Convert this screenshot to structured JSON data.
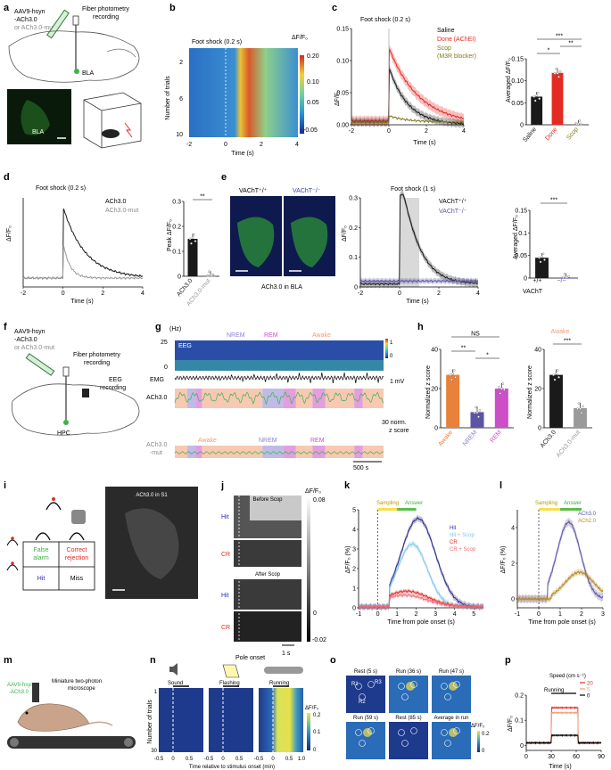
{
  "panels": {
    "a": {
      "letter": "a",
      "virus_l1": "AAV9-hsyn",
      "virus_l2": "-ACh3.0",
      "virus_l3": "or ACh3.0-mut",
      "fiber": "Fiber photometry",
      "fiber2": "recording",
      "region": "BLA",
      "image_label": "BLA"
    },
    "b": {
      "letter": "b",
      "title": "Foot shock (0.2 s)",
      "ylabel": "Number of trials",
      "xlabel": "Time (s)",
      "cbar_label": "ΔF/F₀",
      "cbar_ticks": [
        "0.20",
        "0.10",
        "0.05",
        "-0.05"
      ],
      "xticks": [
        "-2",
        "0",
        "2",
        "4"
      ],
      "yticks": [
        "2",
        "6",
        "10"
      ]
    },
    "c": {
      "letter": "c",
      "title": "Foot shock (0.2 s)",
      "ylabel": "ΔF/F₀",
      "xlabel": "Time (s)",
      "legend": [
        "Saline",
        "Done (AChEI)",
        "Scop",
        "(M3R blocker)"
      ],
      "yticks": [
        "0.00",
        "0.05",
        "0.10",
        "0.15"
      ],
      "xticks": [
        "-2",
        "0",
        "2",
        "4"
      ],
      "bar_ylabel": "Averaged ΔF/F₀",
      "bar_cats": [
        "Saline",
        "Done",
        "Scop"
      ],
      "bar_yticks": [
        "0",
        "0.05",
        "0.10",
        "0.15"
      ],
      "sig": [
        "***",
        "*",
        "**"
      ]
    },
    "d": {
      "letter": "d",
      "title": "Foot shock (0.2 s)",
      "ylabel": "ΔF/F₀",
      "xlabel": "Time (s)",
      "legend": [
        "ACh3.0",
        "ACh3.0-mut"
      ],
      "xticks": [
        "-2",
        "0",
        "2",
        "4"
      ],
      "bar_ylabel": "Peak ΔF/F₀",
      "bar_cats": [
        "ACh3.0",
        "ACh3.0-mut"
      ],
      "bar_yticks": [
        "0",
        "0.1",
        "0.2",
        "0.3"
      ],
      "sig": "**"
    },
    "e": {
      "letter": "e",
      "img1": "VAChT⁺/⁺",
      "img2": "VAChT⁻/⁻",
      "img_caption": "ACh3.0 in BLA",
      "title": "Foot shock (1 s)",
      "legend": [
        "VAChT⁺/⁺",
        "VAChT⁻/⁻"
      ],
      "ylabel": "ΔF/F₀",
      "xlabel": "Time (s)",
      "yticks": [
        "0",
        "0.1",
        "0.2",
        "0.3"
      ],
      "xticks": [
        "-2",
        "0",
        "2",
        "4"
      ],
      "bar_ylabel": "Averaged ΔF/F₀",
      "bar_cats": [
        "+/+",
        "−/−"
      ],
      "bar_prefix": "VAChT",
      "bar_yticks": [
        "0",
        "0.05",
        "0.1",
        "0.15"
      ],
      "sig": "***"
    },
    "f": {
      "letter": "f",
      "virus_l1": "AAV9-hsyn",
      "virus_l2": "-ACh3.0",
      "virus_l3": "or ACh3.0-mut",
      "fiber": "Fiber photometry",
      "fiber2": "recording",
      "eeg": "EEG",
      "eeg2": "recording",
      "region": "HPC"
    },
    "g": {
      "letter": "g",
      "hz": "(Hz)",
      "hz_top": "25",
      "hz_bottom": "0",
      "states": [
        "NREM",
        "REM",
        "Awake"
      ],
      "eeg": "EEG",
      "emg": "EMG",
      "ach": "ACh3.0",
      "mut": "ACh3.0",
      "mut2": "-mut",
      "states2": [
        "Awake",
        "NREM",
        "REM"
      ],
      "scale_mv": "1 mV",
      "scale_z": "30 norm.",
      "scale_z2": "z score",
      "scale_t": "500 s",
      "cbar": [
        "1",
        "0"
      ]
    },
    "h": {
      "letter": "h",
      "ylabel": "Normalized z score",
      "sig_ns": "NS",
      "sig": [
        "**",
        "*"
      ],
      "cats": [
        "Awake",
        "NREM",
        "REM"
      ],
      "yticks": [
        "0",
        "20",
        "40"
      ],
      "right_title": "Awake",
      "right_sig": "***",
      "right_cats": [
        "ACh3.0",
        "ACh3.0-mut"
      ]
    },
    "i": {
      "letter": "i",
      "fa": "False",
      "fa2": "alarm",
      "cr": "Correct",
      "cr2": "rejection",
      "hit": "Hit",
      "miss": "Miss",
      "img_title": "ACh3.0 in S1"
    },
    "j": {
      "letter": "j",
      "before": "Before Scop",
      "after": "After Scop",
      "hit": "Hit",
      "cr": "CR",
      "pole": "Pole onset",
      "scale": "1 s",
      "cbar_label": "ΔF/F₀",
      "cbar_ticks": [
        "0.08",
        "0",
        "-0.02"
      ]
    },
    "k": {
      "letter": "k",
      "sampling": "Sampling",
      "answer": "Answer",
      "legend": [
        "Hit",
        "Hit + Scop",
        "CR",
        "CR + Scop"
      ],
      "ylabel": "ΔF/F₀ (%)",
      "xlabel": "Time from pole onset (s)",
      "yticks": [
        "0",
        "1",
        "2",
        "3",
        "4",
        "5"
      ],
      "xticks": [
        "-1",
        "0",
        "1",
        "2",
        "3",
        "4",
        "5"
      ]
    },
    "l": {
      "letter": "l",
      "sampling": "Sampling",
      "answer": "Answer",
      "legend": [
        "ACh3.0",
        "ACh2.0"
      ],
      "ylabel": "ΔF/F₀ (%)",
      "xlabel": "Time from pole onset (s)",
      "yticks": [
        "0",
        "2",
        "4"
      ],
      "xticks": [
        "-1",
        "0",
        "1",
        "2",
        "3"
      ]
    },
    "m": {
      "letter": "m",
      "virus": "AAV9-hsyn",
      "virus2": "-ACh3.0",
      "scope": "Miniature two-photon",
      "scope2": "microscope"
    },
    "n": {
      "letter": "n",
      "sound": "Sound",
      "flashing": "Flashing",
      "running": "Running",
      "ylabel": "Number of trials",
      "xlabel": "Time relative to stimulus onset (min)",
      "yticks": [
        "1",
        "30"
      ],
      "xticks": [
        "-0.5",
        "0",
        "0.5",
        "1.0"
      ],
      "cbar_label": "ΔF/F₀",
      "cbar_ticks": [
        "0.2",
        "0.1",
        "0"
      ]
    },
    "o": {
      "letter": "o",
      "titles": [
        "Rest (5 s)",
        "Run (36 s)",
        "Run (47 s)",
        "Run (59 s)",
        "Rest (85 s)",
        "Average in run"
      ],
      "rois": [
        "R1",
        "R3",
        "R2"
      ],
      "cbar_label": "ΔF/F₀",
      "cbar_ticks": [
        "0.2",
        "0"
      ]
    },
    "p": {
      "letter": "p",
      "legend_title": "Speed (cm s⁻¹)",
      "legend": [
        "20",
        "5",
        "0"
      ],
      "running": "Running",
      "ylabel": "ΔF/F₀",
      "xlabel": "Time (s)",
      "yticks": [
        "0",
        "0.1",
        "0.2"
      ],
      "xticks": [
        "0",
        "30",
        "60",
        "90"
      ]
    }
  },
  "colors": {
    "black": "#1a1a1a",
    "gray": "#9a9a9a",
    "red": "#e32b23",
    "olive": "#7f7a1a",
    "orange": "#e8813a",
    "purple": "#5c55a5",
    "nrem": "#8a83d1",
    "rem": "#cc4fc7",
    "awake": "#f09c73",
    "green": "#3db14a",
    "pink": "#ef6c7b",
    "lightblue": "#7fc5e8",
    "yellow": "#f6e04a",
    "answer_green": "#5bbd4d"
  },
  "chart_data": [
    {
      "type": "line",
      "panel": "c",
      "series": [
        {
          "name": "Saline",
          "peak": 0.09
        },
        {
          "name": "Done (AChEI)",
          "peak": 0.12
        },
        {
          "name": "Scop (M3R blocker)",
          "peak": 0.01
        }
      ],
      "xlim": [
        -2,
        4
      ],
      "ylim": [
        0,
        0.15
      ]
    },
    {
      "type": "bar",
      "panel": "c",
      "categories": [
        "Saline",
        "Done",
        "Scop"
      ],
      "values": [
        0.064,
        0.118,
        0.0
      ],
      "ylim": [
        0,
        0.15
      ]
    },
    {
      "type": "line",
      "panel": "d",
      "series": [
        {
          "name": "ACh3.0",
          "peak": 0.16
        },
        {
          "name": "ACh3.0-mut",
          "peak": 0.08
        }
      ],
      "xlim": [
        -2,
        4
      ]
    },
    {
      "type": "bar",
      "panel": "d",
      "categories": [
        "ACh3.0",
        "ACh3.0-mut"
      ],
      "values": [
        0.15,
        0.0
      ],
      "ylim": [
        0,
        0.3
      ]
    },
    {
      "type": "line",
      "panel": "e",
      "series": [
        {
          "name": "VAChT+/+",
          "peak": 0.3
        },
        {
          "name": "VAChT-/-",
          "peak": 0.02
        }
      ],
      "xlim": [
        -2,
        4
      ],
      "ylim": [
        0,
        0.3
      ]
    },
    {
      "type": "bar",
      "panel": "e",
      "categories": [
        "+/+",
        "−/−"
      ],
      "values": [
        0.045,
        0.0
      ],
      "ylim": [
        0,
        0.15
      ]
    },
    {
      "type": "bar",
      "panel": "h",
      "categories": [
        "Awake",
        "NREM",
        "REM"
      ],
      "values": [
        27,
        8,
        20
      ],
      "ylim": [
        0,
        40
      ]
    },
    {
      "type": "bar",
      "panel": "h",
      "categories": [
        "ACh3.0",
        "ACh3.0-mut"
      ],
      "values": [
        27,
        10
      ],
      "ylim": [
        0,
        40
      ]
    },
    {
      "type": "line",
      "panel": "k",
      "series": [
        {
          "name": "Hit",
          "peak": 4.5
        },
        {
          "name": "Hit + Scop",
          "peak": 3.2
        },
        {
          "name": "CR",
          "peak": 0.8
        },
        {
          "name": "CR + Scop",
          "peak": 0.6
        }
      ],
      "xlim": [
        -1,
        5
      ],
      "ylim": [
        0,
        5
      ]
    },
    {
      "type": "line",
      "panel": "l",
      "series": [
        {
          "name": "ACh3.0",
          "peak": 4.3
        },
        {
          "name": "ACh2.0",
          "peak": 1.5
        }
      ],
      "xlim": [
        -1,
        3
      ],
      "ylim": [
        0,
        5
      ]
    },
    {
      "type": "line",
      "panel": "p",
      "series": [
        {
          "name": "20",
          "peak": 0.15
        },
        {
          "name": "5",
          "peak": 0.13
        },
        {
          "name": "0",
          "peak": 0.04
        }
      ],
      "xlim": [
        0,
        90
      ],
      "ylim": [
        0,
        0.2
      ]
    }
  ]
}
